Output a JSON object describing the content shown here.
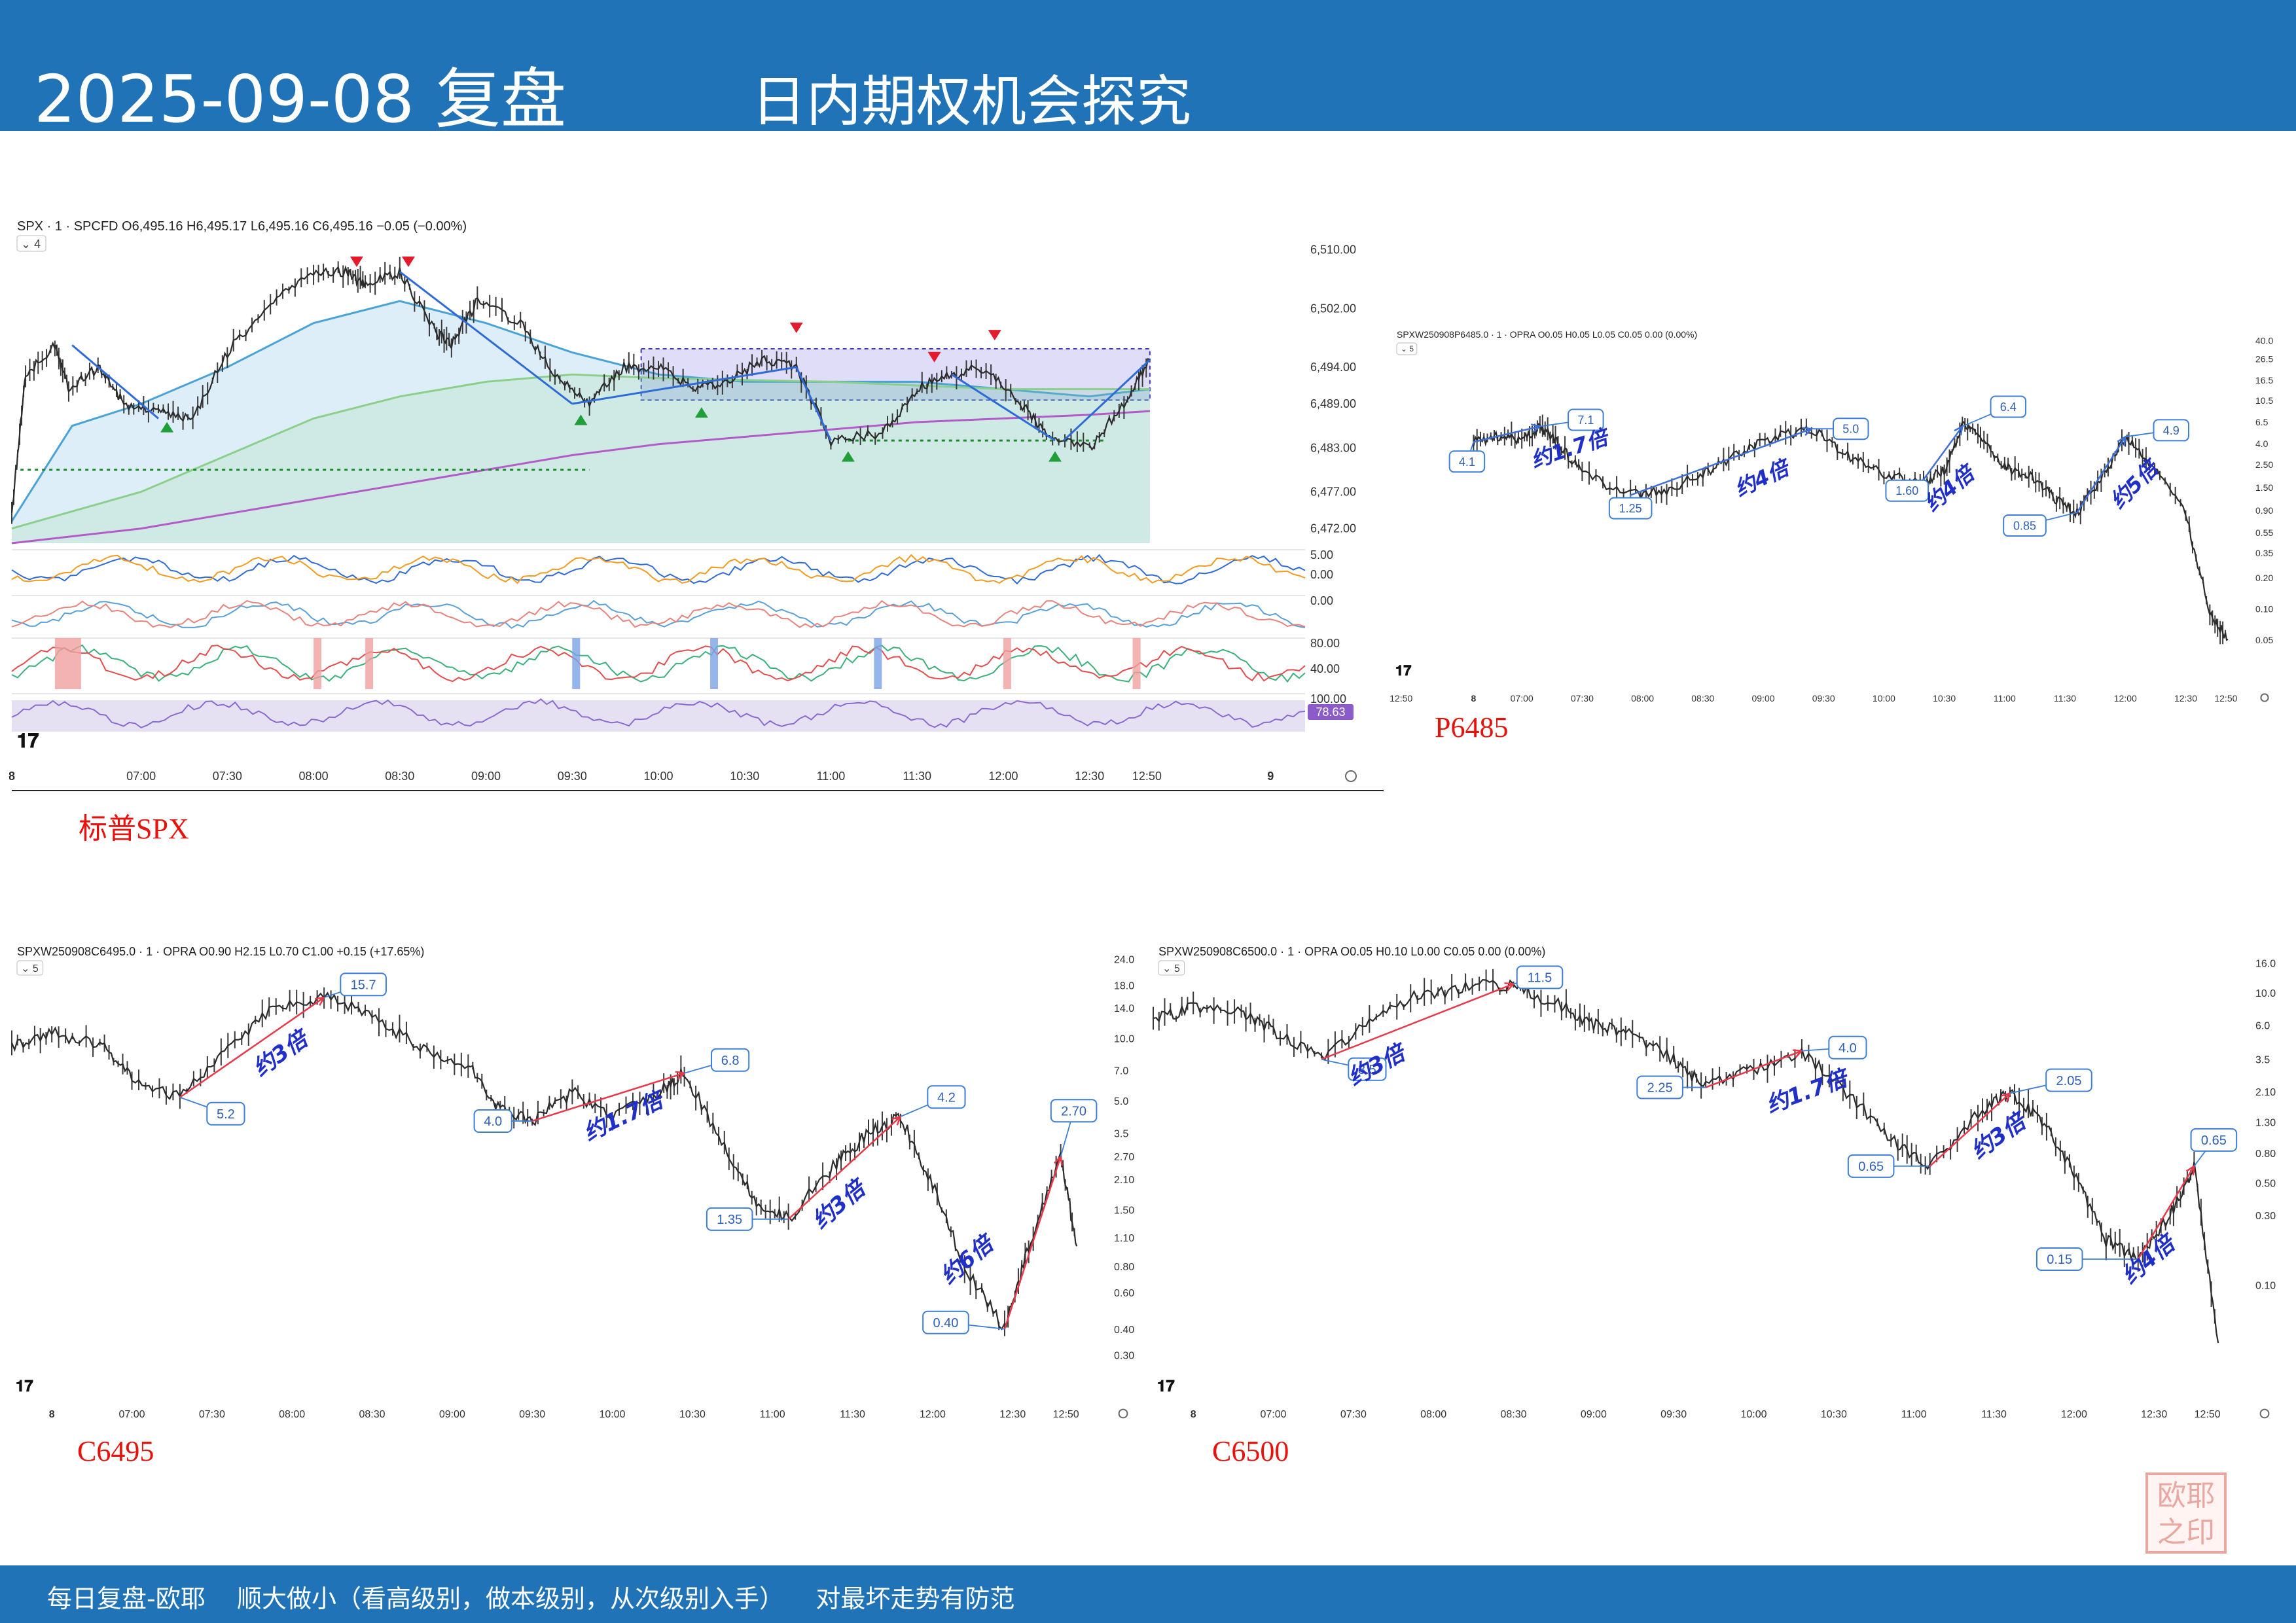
{
  "header": {
    "date_title": "2025-09-08 复盘",
    "subtitle": "日内期权机会探究"
  },
  "footer": {
    "text": "每日复盘-欧耶    顺大做小（看高级别，做本级别，从次级别入手）    对最坏走势有防范"
  },
  "seal": {
    "text": "欧耶"
  },
  "colors": {
    "header_bg": "#1f73b6",
    "label_red": "#e8120c",
    "annot_blue": "#1f2fc8",
    "box_blue": "#3d7fd6",
    "arrow_red": "#e8394a"
  },
  "chart_data": [
    {
      "id": "spx",
      "type": "line",
      "label": "标普SPX",
      "header": {
        "symbol": "SPX · 1 · SPCFD",
        "ohlc": "O6,495.16 H6,495.17 L6,495.16 C6,495.16 −0.05 (−0.00%)",
        "indicator_count": "4"
      },
      "y_ticks": [
        "6,510.00",
        "6,502.00",
        "6,494.00",
        "6,489.00",
        "6,483.00",
        "6,477.00",
        "6,472.00"
      ],
      "y_tick_values": [
        6510,
        6502,
        6494,
        6489,
        6483,
        6477,
        6472
      ],
      "ylim": [
        6470,
        6513
      ],
      "x_ticks": [
        "8",
        "07:00",
        "07:30",
        "08:00",
        "08:30",
        "09:00",
        "09:30",
        "10:00",
        "10:30",
        "11:00",
        "11:30",
        "12:00",
        "12:30",
        "12:50",
        "9"
      ],
      "x_tick_times": [
        6.25,
        7,
        7.5,
        8,
        8.5,
        9,
        9.5,
        10,
        10.5,
        11,
        11.5,
        12,
        12.5,
        12.833,
        13.55
      ],
      "xlim": [
        6.25,
        13.75
      ],
      "series": [
        {
          "role": "price",
          "points": [
            [
              6.25,
              6474
            ],
            [
              6.33,
              6493
            ],
            [
              6.5,
              6497
            ],
            [
              6.58,
              6491
            ],
            [
              6.75,
              6494
            ],
            [
              6.9,
              6489
            ],
            [
              7.1,
              6488
            ],
            [
              7.3,
              6487
            ],
            [
              7.5,
              6496
            ],
            [
              7.75,
              6503
            ],
            [
              8,
              6507
            ],
            [
              8.2,
              6507
            ],
            [
              8.3,
              6505
            ],
            [
              8.5,
              6507
            ],
            [
              8.7,
              6499
            ],
            [
              8.8,
              6497
            ],
            [
              8.95,
              6503
            ],
            [
              9.2,
              6500
            ],
            [
              9.4,
              6493
            ],
            [
              9.6,
              6489
            ],
            [
              9.8,
              6494
            ],
            [
              10,
              6494
            ],
            [
              10.2,
              6491
            ],
            [
              10.4,
              6492
            ],
            [
              10.6,
              6495
            ],
            [
              10.8,
              6494
            ],
            [
              11,
              6484
            ],
            [
              11.3,
              6485
            ],
            [
              11.5,
              6491
            ],
            [
              11.7,
              6493
            ],
            [
              11.9,
              6494
            ],
            [
              12.1,
              6489
            ],
            [
              12.25,
              6485
            ],
            [
              12.5,
              6483
            ],
            [
              12.7,
              6489
            ],
            [
              12.85,
              6495
            ]
          ]
        },
        {
          "role": "ma-blue",
          "points": [
            [
              6.25,
              6473
            ],
            [
              6.6,
              6486
            ],
            [
              7,
              6489
            ],
            [
              7.5,
              6494
            ],
            [
              8,
              6500
            ],
            [
              8.5,
              6503
            ],
            [
              9,
              6500
            ],
            [
              9.5,
              6496
            ],
            [
              10,
              6493
            ],
            [
              10.5,
              6492
            ],
            [
              11,
              6492
            ],
            [
              11.5,
              6492
            ],
            [
              12,
              6491
            ],
            [
              12.5,
              6490
            ],
            [
              12.85,
              6491
            ]
          ]
        },
        {
          "role": "ma-green",
          "points": [
            [
              6.25,
              6472
            ],
            [
              7,
              6477
            ],
            [
              7.5,
              6482
            ],
            [
              8,
              6487
            ],
            [
              8.5,
              6490
            ],
            [
              9,
              6492
            ],
            [
              9.5,
              6493
            ],
            [
              10,
              6492.5
            ],
            [
              11,
              6492
            ],
            [
              12,
              6491
            ],
            [
              12.85,
              6491
            ]
          ]
        },
        {
          "role": "ma-purple",
          "points": [
            [
              6.25,
              6470
            ],
            [
              7,
              6472
            ],
            [
              7.5,
              6474
            ],
            [
              8,
              6476
            ],
            [
              8.5,
              6478
            ],
            [
              9,
              6480
            ],
            [
              9.5,
              6482
            ],
            [
              10,
              6483.5
            ],
            [
              10.5,
              6484.5
            ],
            [
              11,
              6485.5
            ],
            [
              11.5,
              6486.5
            ],
            [
              12,
              6487
            ],
            [
              12.5,
              6487.5
            ],
            [
              12.85,
              6488
            ]
          ]
        }
      ],
      "sub_panels": [
        {
          "y_ticks": [
            "5.00",
            "0.00"
          ]
        },
        {
          "y_ticks": [
            "0.00"
          ]
        },
        {
          "y_ticks": [
            "80.00",
            "40.00"
          ]
        },
        {
          "y_ticks": [
            "100.00"
          ],
          "badge": "78.63"
        }
      ]
    },
    {
      "id": "p6485",
      "type": "line",
      "label": "P6485",
      "header": {
        "symbol": "SPXW250908P6485.0 · 1 · OPRA",
        "ohlc": "O0.05 H0.05 L0.05 C0.05 0.00 (0.00%)",
        "indicator_count": "5"
      },
      "y_ticks": [
        "40.0",
        "26.5",
        "16.5",
        "10.5",
        "6.5",
        "4.0",
        "2.50",
        "1.50",
        "0.90",
        "0.55",
        "0.35",
        "0.20",
        "0.10",
        "0.05"
      ],
      "log_scale": true,
      "ylim": [
        0.03,
        42
      ],
      "x_ticks": [
        "12:50",
        "8",
        "07:00",
        "07:30",
        "08:00",
        "08:30",
        "09:00",
        "09:30",
        "10:00",
        "10:30",
        "11:00",
        "11:30",
        "12:00",
        "12:30",
        "12:50"
      ],
      "x_tick_times": [
        6.0,
        6.6,
        7,
        7.5,
        8,
        8.5,
        9,
        9.5,
        10,
        10.5,
        11,
        11.5,
        12,
        12.5,
        12.833
      ],
      "xlim": [
        5.92,
        12.98
      ],
      "series": [
        {
          "role": "price",
          "points": [
            [
              6.6,
              4.1
            ],
            [
              6.8,
              4.6
            ],
            [
              7,
              4.3
            ],
            [
              7.15,
              5.8
            ],
            [
              7.3,
              4.0
            ],
            [
              7.5,
              2.0
            ],
            [
              7.9,
              1.25
            ],
            [
              8.2,
              1.4
            ],
            [
              8.5,
              2.0
            ],
            [
              8.8,
              3.2
            ],
            [
              9.1,
              4.6
            ],
            [
              9.4,
              5.5
            ],
            [
              9.7,
              3.0
            ],
            [
              10,
              2.0
            ],
            [
              10.3,
              1.6
            ],
            [
              10.5,
              2.2
            ],
            [
              10.65,
              5.8
            ],
            [
              10.8,
              4.5
            ],
            [
              11,
              2.3
            ],
            [
              11.2,
              2.0
            ],
            [
              11.4,
              1.2
            ],
            [
              11.6,
              0.85
            ],
            [
              11.8,
              1.8
            ],
            [
              12,
              4.6
            ],
            [
              12.2,
              2.6
            ],
            [
              12.5,
              0.8
            ],
            [
              12.7,
              0.09
            ],
            [
              12.85,
              0.05
            ]
          ]
        }
      ],
      "annotations": {
        "values": [
          "4.1",
          "7.1",
          "1.25",
          "5.0",
          "1.60",
          "6.4",
          "0.85",
          "4.9"
        ],
        "ratios": [
          "约1.7倍",
          "约4倍",
          "约4倍",
          "约5倍"
        ]
      }
    },
    {
      "id": "c6495",
      "type": "line",
      "label": "C6495",
      "header": {
        "symbol": "SPXW250908C6495.0 · 1 · OPRA",
        "ohlc": "O0.90 H2.15 L0.70 C1.00 +0.15 (+17.65%)",
        "indicator_count": "5"
      },
      "y_ticks": [
        "24.0",
        "18.0",
        "14.0",
        "10.0",
        "7.0",
        "5.0",
        "3.5",
        "2.70",
        "2.10",
        "1.50",
        "1.10",
        "0.80",
        "0.60",
        "0.40",
        "0.30"
      ],
      "log_scale": true,
      "ylim": [
        0.28,
        25
      ],
      "x_ticks": [
        "8",
        "07:00",
        "07:30",
        "08:00",
        "08:30",
        "09:00",
        "09:30",
        "10:00",
        "10:30",
        "11:00",
        "11:30",
        "12:00",
        "12:30",
        "12:50"
      ],
      "x_tick_times": [
        6.5,
        7,
        7.5,
        8,
        8.5,
        9,
        9.5,
        10,
        10.5,
        11,
        11.5,
        12,
        12.5,
        12.833
      ],
      "xlim": [
        6.25,
        13.1
      ],
      "series": [
        {
          "role": "price",
          "points": [
            [
              6.25,
              9.0
            ],
            [
              6.5,
              10.5
            ],
            [
              6.8,
              9.5
            ],
            [
              7,
              6.5
            ],
            [
              7.3,
              5.2
            ],
            [
              7.6,
              9.0
            ],
            [
              7.9,
              14.0
            ],
            [
              8.2,
              15.7
            ],
            [
              8.5,
              13.0
            ],
            [
              8.8,
              9.0
            ],
            [
              9.1,
              7.5
            ],
            [
              9.3,
              4.5
            ],
            [
              9.5,
              4.0
            ],
            [
              9.75,
              5.5
            ],
            [
              10,
              4.2
            ],
            [
              10.3,
              5.5
            ],
            [
              10.45,
              6.8
            ],
            [
              10.7,
              3.0
            ],
            [
              10.9,
              1.6
            ],
            [
              11.1,
              1.35
            ],
            [
              11.4,
              2.5
            ],
            [
              11.6,
              3.5
            ],
            [
              11.8,
              4.2
            ],
            [
              12.0,
              2.0
            ],
            [
              12.2,
              0.8
            ],
            [
              12.45,
              0.4
            ],
            [
              12.6,
              1.0
            ],
            [
              12.8,
              2.7
            ],
            [
              12.9,
              1.0
            ]
          ]
        }
      ],
      "annotations": {
        "values": [
          "15.7",
          "5.2",
          "6.8",
          "4.0",
          "4.2",
          "1.35",
          "2.70",
          "0.40"
        ],
        "ratios": [
          "约3倍",
          "约1.7倍",
          "约3倍",
          "约6倍"
        ]
      }
    },
    {
      "id": "c6500",
      "type": "line",
      "label": "C6500",
      "header": {
        "symbol": "SPXW250908C6500.0 · 1 · OPRA",
        "ohlc": "O0.05 H0.10 L0.00 C0.05 0.00 (0.00%)",
        "indicator_count": "5"
      },
      "y_ticks": [
        "16.0",
        "10.0",
        "6.0",
        "3.5",
        "2.10",
        "1.30",
        "0.80",
        "0.50",
        "0.30",
        "0.10"
      ],
      "log_scale": true,
      "ylim": [
        0.03,
        18
      ],
      "x_ticks": [
        "8",
        "07:00",
        "07:30",
        "08:00",
        "08:30",
        "09:00",
        "09:30",
        "10:00",
        "10:30",
        "11:00",
        "11:30",
        "12:00",
        "12:30",
        "12:50"
      ],
      "x_tick_times": [
        6.5,
        7,
        7.5,
        8,
        8.5,
        9,
        9.5,
        10,
        10.5,
        11,
        11.5,
        12,
        12.5,
        12.833
      ],
      "xlim": [
        6.25,
        13.1
      ],
      "series": [
        {
          "role": "price",
          "points": [
            [
              6.25,
              6.5
            ],
            [
              6.5,
              8.0
            ],
            [
              6.8,
              7.5
            ],
            [
              7,
              5.5
            ],
            [
              7.3,
              3.5
            ],
            [
              7.6,
              6.5
            ],
            [
              7.9,
              9.5
            ],
            [
              8.2,
              11.0
            ],
            [
              8.5,
              11.5
            ],
            [
              8.8,
              8.0
            ],
            [
              9.0,
              6.0
            ],
            [
              9.2,
              5.5
            ],
            [
              9.5,
              3.5
            ],
            [
              9.7,
              2.25
            ],
            [
              10,
              3.0
            ],
            [
              10.3,
              4.0
            ],
            [
              10.6,
              2.0
            ],
            [
              10.9,
              0.9
            ],
            [
              11.1,
              0.65
            ],
            [
              11.4,
              1.5
            ],
            [
              11.6,
              2.05
            ],
            [
              11.8,
              1.3
            ],
            [
              12.0,
              0.6
            ],
            [
              12.2,
              0.2
            ],
            [
              12.4,
              0.15
            ],
            [
              12.6,
              0.3
            ],
            [
              12.75,
              0.65
            ],
            [
              12.9,
              0.04
            ]
          ]
        }
      ],
      "annotations": {
        "values": [
          "11.5",
          "3.5",
          "4.0",
          "2.25",
          "2.05",
          "0.65",
          "0.65",
          "0.15"
        ],
        "ratios": [
          "约3倍",
          "约1.7倍",
          "约3倍",
          "约4倍"
        ]
      }
    }
  ]
}
